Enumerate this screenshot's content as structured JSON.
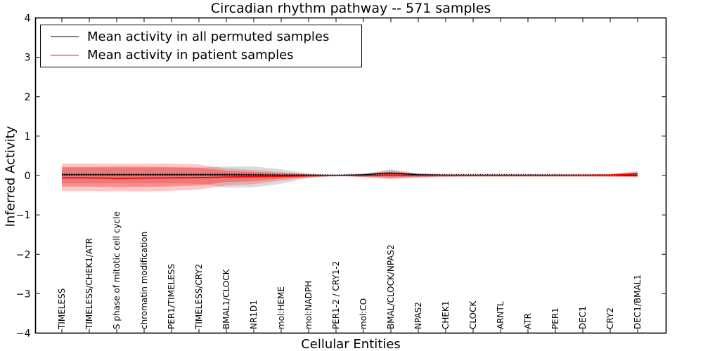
{
  "title": "Circadian rhythm pathway -- 571 samples",
  "legend": {
    "items": [
      {
        "label": "Mean activity in all permuted samples",
        "color": "#000000"
      },
      {
        "label": "Mean activity in patient samples",
        "color": "#ff0000"
      }
    ]
  },
  "axes": {
    "xlabel": "Cellular Entities",
    "ylabel": "Inferred Activity",
    "ytick_labels": [
      "4",
      "3",
      "2",
      "1",
      "0",
      "−1",
      "−2",
      "−3",
      "−4"
    ],
    "ytick_values": [
      4,
      3,
      2,
      1,
      0,
      -1,
      -2,
      -3,
      -4
    ],
    "ylim": [
      -4,
      4
    ]
  },
  "colors": {
    "background": "#ffffff",
    "axis": "#000000",
    "patient": "#ff0000",
    "permuted": "#000000"
  },
  "chart_data": {
    "type": "line",
    "title": "Circadian rhythm pathway -- 571 samples",
    "xlabel": "Cellular Entities",
    "ylabel": "Inferred Activity",
    "ylim": [
      -4,
      4
    ],
    "grid": false,
    "legend_position": "upper left",
    "categories": [
      "TIMELESS",
      "TIMELESS/CHEK1/ATR",
      "S phase of mitotic cell cycle",
      "chromatin modification",
      "PER1/TIMELESS",
      "TIMELESS/CRY2",
      "BMAL1/CLOCK",
      "NR1D1",
      "mol:HEME",
      "mol:NADPH",
      "PER1-2 / CRY1-2",
      "mol:CO",
      "BMAL/CLOCK/NPAS2",
      "NPAS2",
      "CHEK1",
      "CLOCK",
      "ARNTL",
      "ATR",
      "PER1",
      "DEC1",
      "CRY2",
      "DEC1/BMAL1"
    ],
    "series": [
      {
        "name": "Mean activity in all permuted samples",
        "type": "line",
        "color": "#000000",
        "style": "solid-with-tick-markers",
        "values": [
          0.02,
          0.02,
          0.02,
          0.02,
          0.02,
          0.02,
          0.02,
          0.015,
          0.01,
          0.01,
          0.005,
          0.02,
          0.06,
          0.02,
          0.01,
          0.01,
          0.01,
          0.01,
          0.01,
          0.01,
          0.01,
          0.01
        ]
      },
      {
        "name": "Mean activity in patient samples",
        "type": "line",
        "color": "#ff0000",
        "style": "solid",
        "values": [
          -0.06,
          -0.06,
          -0.07,
          -0.065,
          -0.06,
          -0.055,
          -0.04,
          -0.03,
          -0.02,
          -0.01,
          0.0,
          -0.005,
          0.01,
          0.0,
          0.0,
          0.0,
          0.0,
          0.0,
          0.0,
          0.005,
          0.01,
          0.05
        ]
      }
    ],
    "bands": [
      {
        "name": "permuted-samples-std-band",
        "color": "rgba(0,0,0,0.14)",
        "upper": [
          0.2,
          0.2,
          0.2,
          0.2,
          0.2,
          0.2,
          0.23,
          0.23,
          0.16,
          0.05,
          0.012,
          0.04,
          0.16,
          0.05,
          0.022,
          0.02,
          0.02,
          0.02,
          0.02,
          0.02,
          0.02,
          0.03
        ],
        "lower": [
          -0.2,
          -0.2,
          -0.2,
          -0.2,
          -0.2,
          -0.21,
          -0.31,
          -0.3,
          -0.21,
          -0.06,
          -0.012,
          -0.035,
          -0.07,
          -0.045,
          -0.022,
          -0.02,
          -0.02,
          -0.02,
          -0.02,
          -0.02,
          -0.02,
          -0.03
        ]
      },
      {
        "name": "patient-samples-outer-band",
        "color": "rgba(255,0,0,0.22)",
        "upper": [
          0.3,
          0.3,
          0.3,
          0.3,
          0.3,
          0.28,
          0.18,
          0.14,
          0.09,
          0.035,
          0.01,
          0.035,
          0.13,
          0.05,
          0.03,
          0.03,
          0.03,
          0.03,
          0.03,
          0.03,
          0.04,
          0.12
        ],
        "lower": [
          -0.39,
          -0.39,
          -0.4,
          -0.4,
          -0.385,
          -0.36,
          -0.25,
          -0.22,
          -0.13,
          -0.045,
          -0.01,
          -0.04,
          -0.09,
          -0.055,
          -0.035,
          -0.03,
          -0.03,
          -0.03,
          -0.03,
          -0.03,
          -0.035,
          -0.05
        ]
      },
      {
        "name": "patient-samples-inner-band",
        "color": "rgba(255,0,0,0.28)",
        "upper": [
          0.22,
          0.22,
          0.225,
          0.225,
          0.215,
          0.2,
          0.12,
          0.09,
          0.055,
          0.02,
          0.006,
          0.02,
          0.07,
          0.03,
          0.02,
          0.02,
          0.02,
          0.02,
          0.02,
          0.02,
          0.025,
          0.07
        ],
        "lower": [
          -0.28,
          -0.28,
          -0.29,
          -0.29,
          -0.275,
          -0.255,
          -0.165,
          -0.14,
          -0.08,
          -0.025,
          -0.006,
          -0.025,
          -0.05,
          -0.035,
          -0.022,
          -0.02,
          -0.02,
          -0.02,
          -0.02,
          -0.02,
          -0.022,
          -0.03
        ]
      }
    ]
  }
}
